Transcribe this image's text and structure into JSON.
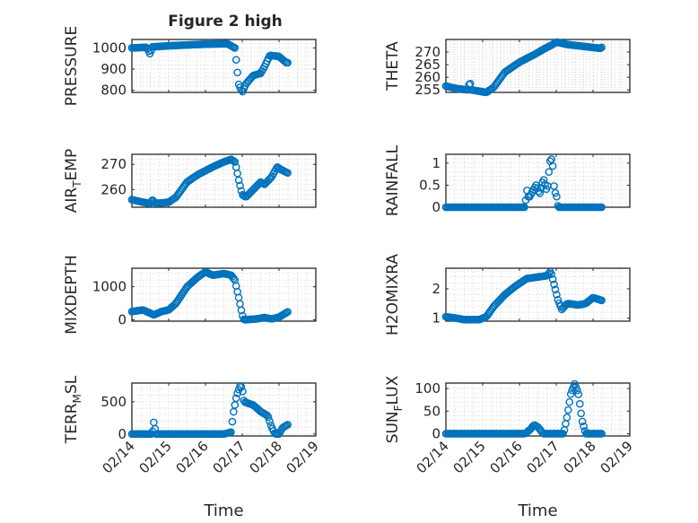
{
  "figure": {
    "title": "Figure 2 high"
  },
  "chart_data": [
    {
      "type": "scatter",
      "ylabel": "PRESSURE",
      "ylabel_sub": "",
      "ylabel_rest": "",
      "x_ticks": [
        "02/14",
        "02/15",
        "02/16",
        "02/17",
        "02/18",
        "02/19"
      ],
      "show_xticks": false,
      "xlim": [
        0,
        5
      ],
      "ylim": [
        790,
        1040
      ],
      "y_ticks": [
        800,
        900,
        1000
      ],
      "grid": true,
      "keypoints": [
        [
          0,
          1000
        ],
        [
          0.4,
          1003
        ],
        [
          0.5,
          970
        ],
        [
          0.55,
          1005
        ],
        [
          1.0,
          1010
        ],
        [
          2.0,
          1018
        ],
        [
          2.6,
          1020
        ],
        [
          2.8,
          1000
        ],
        [
          2.85,
          920
        ],
        [
          2.9,
          830
        ],
        [
          3.0,
          790
        ],
        [
          3.1,
          830
        ],
        [
          3.3,
          870
        ],
        [
          3.5,
          880
        ],
        [
          3.6,
          910
        ],
        [
          3.75,
          965
        ],
        [
          4.0,
          960
        ],
        [
          4.2,
          930
        ],
        [
          4.25,
          930
        ]
      ]
    },
    {
      "type": "scatter",
      "ylabel": "THETA",
      "ylabel_sub": "",
      "ylabel_rest": "",
      "x_ticks": [
        "02/14",
        "02/15",
        "02/16",
        "02/17",
        "02/18",
        "02/19"
      ],
      "show_xticks": false,
      "xlim": [
        0,
        5
      ],
      "ylim": [
        254,
        275
      ],
      "y_ticks": [
        255,
        260,
        265,
        270
      ],
      "grid": true,
      "keypoints": [
        [
          0,
          256.5
        ],
        [
          0.3,
          255.5
        ],
        [
          0.6,
          255
        ],
        [
          0.65,
          258.5
        ],
        [
          0.7,
          255
        ],
        [
          0.9,
          254.5
        ],
        [
          1.1,
          254
        ],
        [
          1.3,
          256
        ],
        [
          1.6,
          262
        ],
        [
          2.0,
          266
        ],
        [
          2.4,
          269
        ],
        [
          2.7,
          271.5
        ],
        [
          2.9,
          273
        ],
        [
          3.0,
          274
        ],
        [
          3.3,
          273
        ],
        [
          3.6,
          272.5
        ],
        [
          3.9,
          272
        ],
        [
          4.2,
          271.5
        ],
        [
          4.25,
          272
        ]
      ]
    },
    {
      "type": "scatter",
      "ylabel": "AIR",
      "ylabel_sub": "T",
      "ylabel_rest": "EMP",
      "x_ticks": [
        "02/14",
        "02/15",
        "02/16",
        "02/17",
        "02/18",
        "02/19"
      ],
      "show_xticks": false,
      "xlim": [
        0,
        5
      ],
      "ylim": [
        253,
        274
      ],
      "y_ticks": [
        260,
        270
      ],
      "grid": true,
      "keypoints": [
        [
          0,
          256
        ],
        [
          0.3,
          255
        ],
        [
          0.5,
          254.5
        ],
        [
          0.55,
          256
        ],
        [
          0.65,
          254.5
        ],
        [
          1.0,
          255
        ],
        [
          1.2,
          257
        ],
        [
          1.5,
          263
        ],
        [
          1.8,
          266
        ],
        [
          2.2,
          269
        ],
        [
          2.5,
          271
        ],
        [
          2.7,
          272
        ],
        [
          2.8,
          271
        ],
        [
          2.85,
          268
        ],
        [
          2.9,
          264
        ],
        [
          3.0,
          258
        ],
        [
          3.1,
          257
        ],
        [
          3.3,
          260
        ],
        [
          3.5,
          263
        ],
        [
          3.6,
          262
        ],
        [
          3.8,
          265
        ],
        [
          3.95,
          269
        ],
        [
          4.05,
          268
        ],
        [
          4.25,
          266.5
        ]
      ]
    },
    {
      "type": "scatter",
      "ylabel": "RAINFALL",
      "ylabel_sub": "",
      "ylabel_rest": "",
      "x_ticks": [
        "02/14",
        "02/15",
        "02/16",
        "02/17",
        "02/18",
        "02/19"
      ],
      "show_xticks": false,
      "xlim": [
        0,
        5
      ],
      "ylim": [
        0,
        1.2
      ],
      "y_ticks": [
        0,
        0.5,
        1
      ],
      "grid": true,
      "keypoints": [
        [
          0,
          0
        ],
        [
          2.15,
          0
        ],
        [
          2.2,
          0.4
        ],
        [
          2.25,
          0.2
        ],
        [
          2.35,
          0.35
        ],
        [
          2.45,
          0.5
        ],
        [
          2.55,
          0.3
        ],
        [
          2.65,
          0.65
        ],
        [
          2.75,
          0.35
        ],
        [
          2.8,
          0.8
        ],
        [
          2.85,
          1.15
        ],
        [
          2.9,
          1.0
        ],
        [
          2.95,
          0.35
        ],
        [
          3.0,
          0.3
        ],
        [
          3.05,
          0
        ],
        [
          4.25,
          0
        ]
      ]
    },
    {
      "type": "scatter",
      "ylabel": "MIXDEPTH",
      "ylabel_sub": "",
      "ylabel_rest": "",
      "x_ticks": [
        "02/14",
        "02/15",
        "02/16",
        "02/17",
        "02/18",
        "02/19"
      ],
      "show_xticks": false,
      "xlim": [
        0,
        5
      ],
      "ylim": [
        -40,
        1560
      ],
      "y_ticks": [
        0,
        1000
      ],
      "grid": true,
      "keypoints": [
        [
          0,
          250
        ],
        [
          0.3,
          300
        ],
        [
          0.6,
          150
        ],
        [
          0.8,
          250
        ],
        [
          1.0,
          300
        ],
        [
          1.2,
          500
        ],
        [
          1.5,
          1000
        ],
        [
          1.8,
          1300
        ],
        [
          2.0,
          1450
        ],
        [
          2.2,
          1350
        ],
        [
          2.5,
          1400
        ],
        [
          2.7,
          1350
        ],
        [
          2.8,
          1200
        ],
        [
          2.9,
          700
        ],
        [
          3.0,
          150
        ],
        [
          3.05,
          0
        ],
        [
          3.4,
          30
        ],
        [
          3.6,
          70
        ],
        [
          3.8,
          30
        ],
        [
          4.0,
          80
        ],
        [
          4.25,
          250
        ]
      ]
    },
    {
      "type": "scatter",
      "ylabel": "H2OMIXRA",
      "ylabel_sub": "",
      "ylabel_rest": "",
      "x_ticks": [
        "02/14",
        "02/15",
        "02/16",
        "02/17",
        "02/18",
        "02/19"
      ],
      "show_xticks": false,
      "xlim": [
        0,
        5
      ],
      "ylim": [
        0.9,
        2.7
      ],
      "y_ticks": [
        1,
        2
      ],
      "grid": true,
      "keypoints": [
        [
          0,
          1.05
        ],
        [
          0.3,
          1.0
        ],
        [
          0.5,
          0.95
        ],
        [
          0.9,
          0.95
        ],
        [
          1.1,
          1.05
        ],
        [
          1.3,
          1.4
        ],
        [
          1.6,
          1.8
        ],
        [
          1.9,
          2.1
        ],
        [
          2.2,
          2.35
        ],
        [
          2.5,
          2.4
        ],
        [
          2.75,
          2.45
        ],
        [
          2.85,
          2.6
        ],
        [
          2.95,
          2.1
        ],
        [
          3.05,
          1.6
        ],
        [
          3.15,
          1.3
        ],
        [
          3.3,
          1.5
        ],
        [
          3.6,
          1.45
        ],
        [
          3.8,
          1.5
        ],
        [
          4.0,
          1.7
        ],
        [
          4.25,
          1.6
        ]
      ]
    },
    {
      "type": "scatter",
      "ylabel": "TERR",
      "ylabel_sub": "M",
      "ylabel_rest": "SL",
      "x_ticks": [
        "02/14",
        "02/15",
        "02/16",
        "02/17",
        "02/18",
        "02/19"
      ],
      "show_xticks": true,
      "xlim": [
        0,
        5
      ],
      "ylim": [
        -30,
        790
      ],
      "y_ticks": [
        0,
        500
      ],
      "grid": true,
      "keypoints": [
        [
          0,
          0
        ],
        [
          0.55,
          0
        ],
        [
          0.6,
          200
        ],
        [
          0.65,
          0
        ],
        [
          2.5,
          0
        ],
        [
          2.7,
          30
        ],
        [
          2.75,
          300
        ],
        [
          2.85,
          600
        ],
        [
          2.95,
          760
        ],
        [
          3.0,
          700
        ],
        [
          3.05,
          500
        ],
        [
          3.3,
          450
        ],
        [
          3.5,
          350
        ],
        [
          3.7,
          280
        ],
        [
          3.8,
          100
        ],
        [
          3.9,
          0
        ],
        [
          4.0,
          0
        ],
        [
          4.1,
          100
        ],
        [
          4.25,
          150
        ]
      ]
    },
    {
      "type": "scatter",
      "ylabel": "SUN",
      "ylabel_sub": "F",
      "ylabel_rest": "LUX",
      "x_ticks": [
        "02/14",
        "02/15",
        "02/16",
        "02/17",
        "02/18",
        "02/19"
      ],
      "show_xticks": true,
      "xlim": [
        0,
        5
      ],
      "ylim": [
        -5,
        112
      ],
      "y_ticks": [
        0,
        50,
        100
      ],
      "grid": true,
      "keypoints": [
        [
          0,
          0
        ],
        [
          2.15,
          0
        ],
        [
          2.3,
          10
        ],
        [
          2.4,
          20
        ],
        [
          2.5,
          15
        ],
        [
          2.65,
          0
        ],
        [
          3.2,
          0
        ],
        [
          3.3,
          40
        ],
        [
          3.4,
          90
        ],
        [
          3.5,
          110
        ],
        [
          3.6,
          90
        ],
        [
          3.7,
          30
        ],
        [
          3.8,
          0
        ],
        [
          4.25,
          0
        ]
      ]
    }
  ],
  "xlabel": "Time",
  "colors": {
    "marker": "#0072bd"
  }
}
